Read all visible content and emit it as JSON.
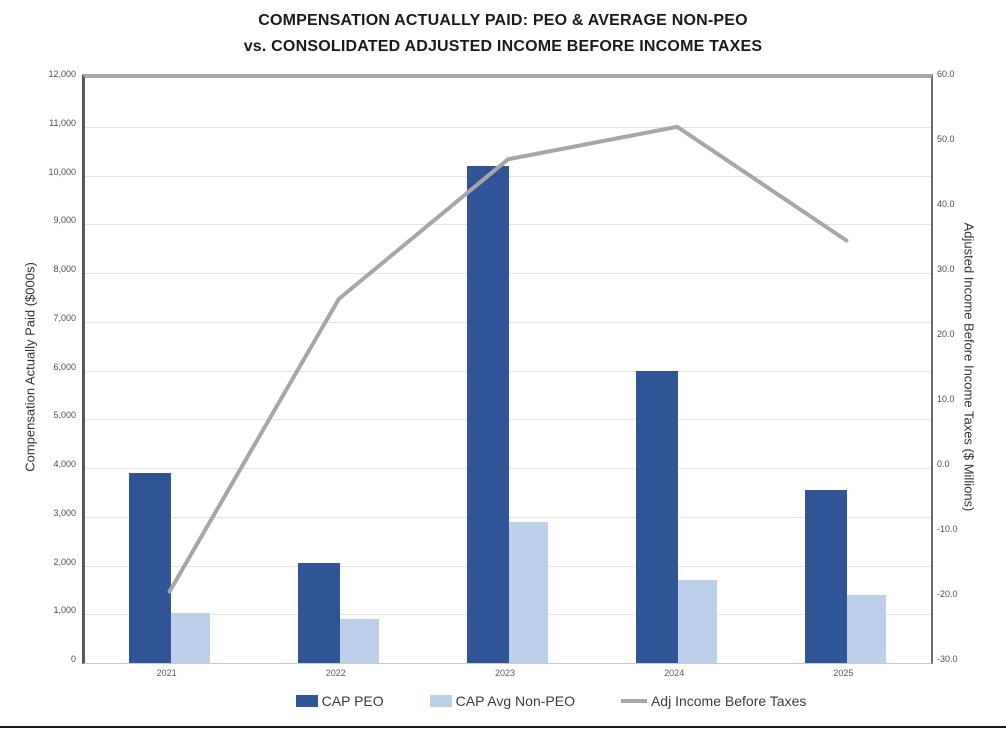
{
  "title": {
    "line1": "COMPENSATION ACTUALLY PAID: PEO & AVERAGE NON-PEO",
    "line2": "vs. CONSOLIDATED ADJUSTED INCOME BEFORE INCOME TAXES"
  },
  "chart_data": {
    "type": "bar",
    "subtype": "grouped bars with overlaid line, dual y-axes",
    "categories": [
      "2021",
      "2022",
      "2023",
      "2024",
      "2025"
    ],
    "series": [
      {
        "name": "CAP PEO",
        "type": "bar",
        "axis": "left",
        "color": "#2F5597",
        "values": [
          3900,
          2050,
          10200,
          6000,
          3550
        ]
      },
      {
        "name": "CAP Avg Non-PEO",
        "type": "bar",
        "axis": "left",
        "color": "#BDD0EA",
        "values": [
          1025,
          900,
          2900,
          1700,
          1400
        ]
      },
      {
        "name": "Adj Income Before Taxes",
        "type": "line",
        "axis": "right",
        "color": "#A6A6A6",
        "values": [
          -19,
          26,
          47.5,
          52.5,
          35
        ]
      }
    ],
    "left_axis": {
      "label": "Compensation Actually Paid ($000s)",
      "min": 0,
      "max": 12000,
      "step": 1000,
      "tick_labels": [
        "12,000",
        "11,000",
        "10,000",
        "9,000",
        "8,000",
        "7,000",
        "6,000",
        "5,000",
        "4,000",
        "3,000",
        "2,000",
        "1,000",
        "0"
      ]
    },
    "right_axis": {
      "label": "Adjusted Income Before Income Taxes ($ Millions)",
      "min": -30,
      "max": 60,
      "step": 10,
      "tick_labels": [
        "60.0",
        "50.0",
        "40.0",
        "30.0",
        "20.0",
        "10.0",
        "0.0",
        "-10.0",
        "-20.0",
        "-30.0"
      ]
    },
    "legend": {
      "position": "bottom",
      "entries": [
        "CAP PEO",
        "CAP Avg Non-PEO",
        "Adj Income Before Taxes"
      ]
    },
    "grid": "horizontal gridlines every 1,000 on left axis"
  },
  "colors": {
    "bar_dark_blue": "#2F5597",
    "bar_light_blue": "#BDD0EA",
    "line_gray": "#A6A6A6",
    "gridline": "#E4E4E4",
    "axis_line": "#595959",
    "title_text": "#1A1A1A"
  }
}
